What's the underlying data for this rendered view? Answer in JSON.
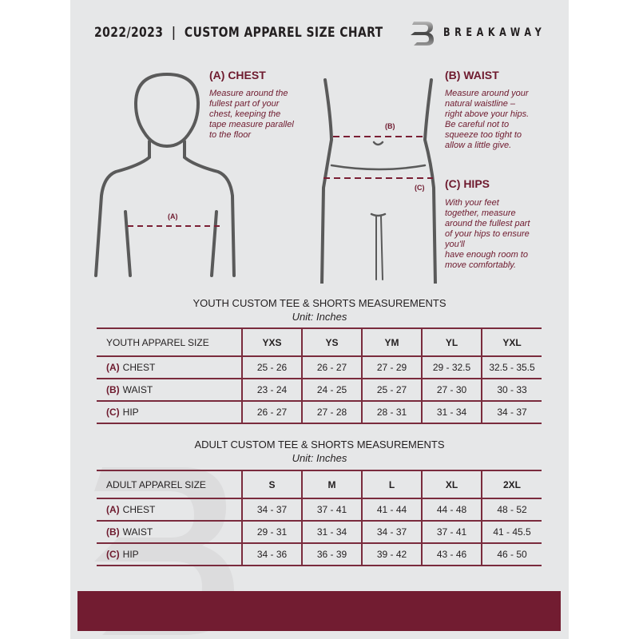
{
  "header": {
    "title": "2022/2023  |  CUSTOM APPAREL SIZE CHART",
    "brand": "BREAKAWAY",
    "logo_letter": "B"
  },
  "chest": {
    "heading": "(A) CHEST",
    "marker": "(A)",
    "lines": [
      "Measure around the",
      "fullest part of your",
      "chest, keeping the",
      "tape measure parallel",
      "to the floor"
    ]
  },
  "waist": {
    "heading": "(B) WAIST",
    "marker": "(B)",
    "lines": [
      "Measure around your",
      "natural waistline –",
      "right above your hips.",
      "Be careful not to",
      "squeeze too tight to",
      "allow a little give."
    ]
  },
  "hips": {
    "heading": "(C) HIPS",
    "marker": "(C)",
    "lines": [
      "With your feet",
      "together, measure",
      "around the fullest part",
      "of your hips to ensure",
      "you'll",
      "have enough room to",
      "move comfortably."
    ]
  },
  "colors": {
    "accent": "#721c31",
    "background": "#e6e7e8"
  },
  "youth": {
    "title": "YOUTH CUSTOM TEE & SHORTS MEASUREMENTS",
    "unit": "Unit: Inches",
    "corner": "YOUTH APPAREL SIZE",
    "sizes": [
      "YXS",
      "YS",
      "YM",
      "YL",
      "YXL"
    ],
    "rows": [
      {
        "code": "(A)",
        "label": "CHEST",
        "values": [
          "25 - 26",
          "26 - 27",
          "27 - 29",
          "29 - 32.5",
          "32.5 - 35.5"
        ]
      },
      {
        "code": "(B)",
        "label": "WAIST",
        "values": [
          "23 - 24",
          "24 - 25",
          "25 - 27",
          "27 - 30",
          "30 - 33"
        ]
      },
      {
        "code": "(C)",
        "label": "HIP",
        "values": [
          "26 - 27",
          "27 - 28",
          "28 - 31",
          "31 - 34",
          "34 - 37"
        ]
      }
    ]
  },
  "adult": {
    "title": "ADULT CUSTOM TEE & SHORTS MEASUREMENTS",
    "unit": "Unit: Inches",
    "corner": "ADULT APPAREL SIZE",
    "sizes": [
      "S",
      "M",
      "L",
      "XL",
      "2XL"
    ],
    "rows": [
      {
        "code": "(A)",
        "label": "CHEST",
        "values": [
          "34 - 37",
          "37 - 41",
          "41 - 44",
          "44 - 48",
          "48 - 52"
        ]
      },
      {
        "code": "(B)",
        "label": "WAIST",
        "values": [
          "29 - 31",
          "31 - 34",
          "34 - 37",
          "37 - 41",
          "41 - 45.5"
        ]
      },
      {
        "code": "(C)",
        "label": "HIP",
        "values": [
          "34 - 36",
          "36 - 39",
          "39 - 42",
          "43 - 46",
          "46 - 50"
        ]
      }
    ]
  }
}
